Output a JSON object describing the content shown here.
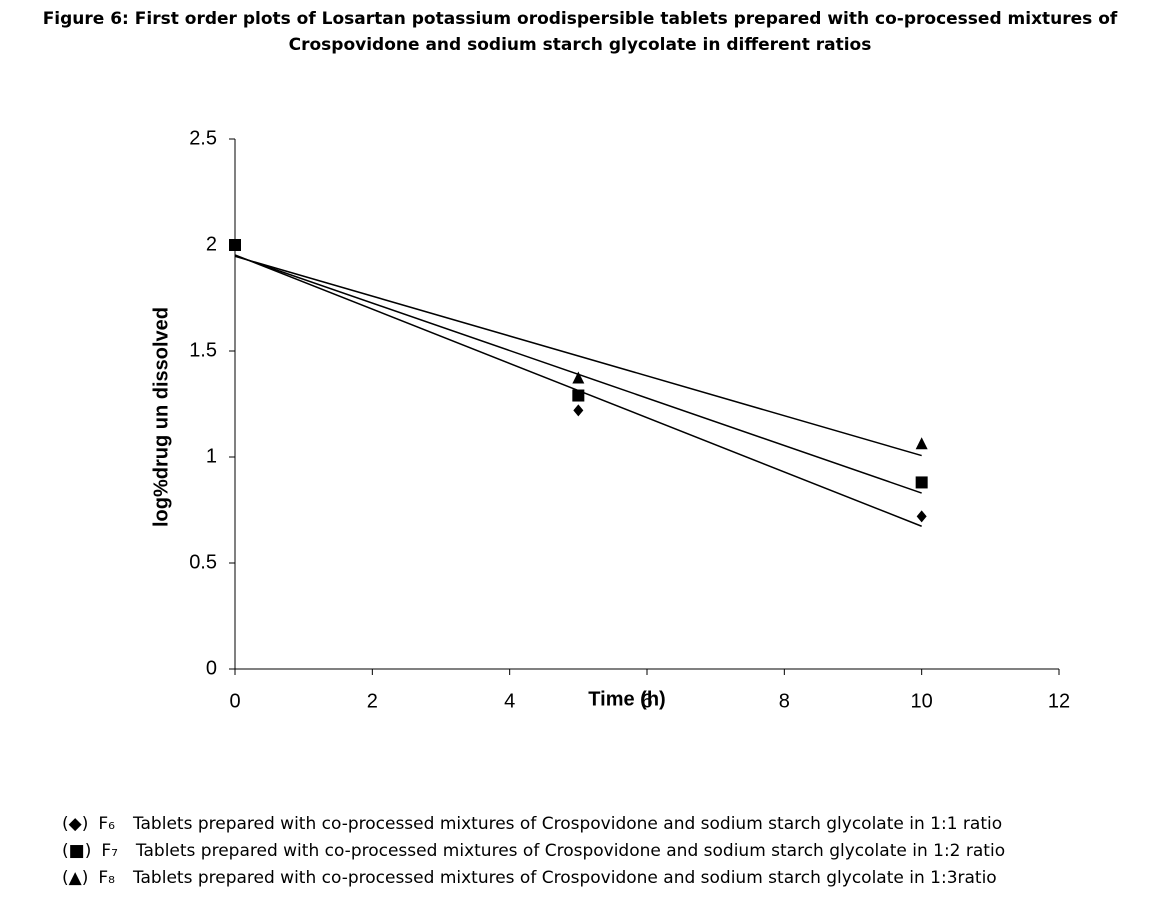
{
  "chart_data": {
    "type": "scatter",
    "title": "Figure 6: First order plots of Losartan potassium orodispersible tablets prepared with co-processed mixtures of Crospovidone and sodium starch glycolate in different ratios",
    "x_label": "Time (h)",
    "y_label": "log%drug un dissolved",
    "x": [
      0,
      5,
      10
    ],
    "series": [
      {
        "name": "F₆",
        "legend_symbol": "(◆)",
        "description": "Tablets prepared with co-processed mixtures of Crospovidone and sodium starch glycolate in 1:1 ratio",
        "marker": "diamond",
        "color": "#000000",
        "values": [
          2,
          1.22,
          0.72
        ]
      },
      {
        "name": "F₇",
        "legend_symbol": "(■)",
        "description": "Tablets prepared with co-processed mixtures of Crospovidone and sodium starch glycolate in 1:2 ratio",
        "marker": "square",
        "color": "#000000",
        "values": [
          2,
          1.29,
          0.88
        ]
      },
      {
        "name": "F₈",
        "legend_symbol": "(▲)",
        "description": "Tablets prepared with co-processed mixtures of Crospovidone and sodium starch glycolate in 1:3ratio",
        "marker": "triangle",
        "color": "#000000",
        "values": [
          2,
          1.37,
          1.06
        ]
      }
    ],
    "trendline": "linear",
    "xlim": [
      0,
      12
    ],
    "xticks": [
      0,
      2,
      4,
      6,
      8,
      10,
      12
    ],
    "ylim": [
      0,
      2.5
    ],
    "yticks": [
      0,
      0.5,
      1,
      1.5,
      2,
      2.5
    ],
    "grid": false
  }
}
